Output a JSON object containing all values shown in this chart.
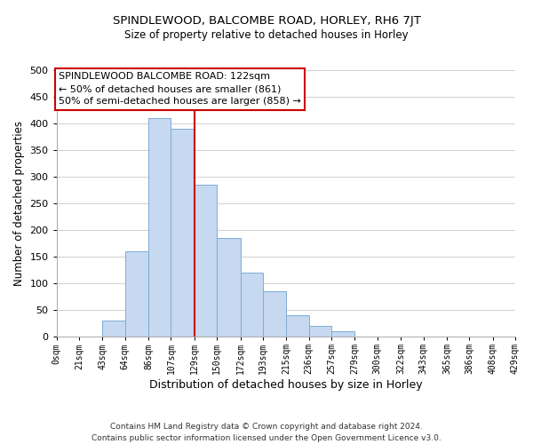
{
  "title": "SPINDLEWOOD, BALCOMBE ROAD, HORLEY, RH6 7JT",
  "subtitle": "Size of property relative to detached houses in Horley",
  "xlabel": "Distribution of detached houses by size in Horley",
  "ylabel": "Number of detached properties",
  "bar_color": "#c6d9f0",
  "bar_edge_color": "#7badd4",
  "bin_edges": [
    0,
    21,
    43,
    64,
    86,
    107,
    129,
    150,
    172,
    193,
    215,
    236,
    257,
    279,
    300,
    322,
    343,
    365,
    386,
    408,
    429
  ],
  "bin_labels": [
    "0sqm",
    "21sqm",
    "43sqm",
    "64sqm",
    "86sqm",
    "107sqm",
    "129sqm",
    "150sqm",
    "172sqm",
    "193sqm",
    "215sqm",
    "236sqm",
    "257sqm",
    "279sqm",
    "300sqm",
    "322sqm",
    "343sqm",
    "365sqm",
    "386sqm",
    "408sqm",
    "429sqm"
  ],
  "counts": [
    0,
    0,
    30,
    160,
    410,
    390,
    285,
    185,
    120,
    85,
    40,
    20,
    10,
    0,
    0,
    0,
    0,
    0,
    0,
    0
  ],
  "ylim": [
    0,
    500
  ],
  "yticks": [
    0,
    50,
    100,
    150,
    200,
    250,
    300,
    350,
    400,
    450,
    500
  ],
  "vline_x": 129,
  "vline_color": "#cc0000",
  "annotation_title": "SPINDLEWOOD BALCOMBE ROAD: 122sqm",
  "annotation_line1": "← 50% of detached houses are smaller (861)",
  "annotation_line2": "50% of semi-detached houses are larger (858) →",
  "annotation_box_color": "#ffffff",
  "annotation_box_edge": "#cc0000",
  "footer_line1": "Contains HM Land Registry data © Crown copyright and database right 2024.",
  "footer_line2": "Contains public sector information licensed under the Open Government Licence v3.0.",
  "background_color": "#ffffff",
  "grid_color": "#d0d0d0"
}
